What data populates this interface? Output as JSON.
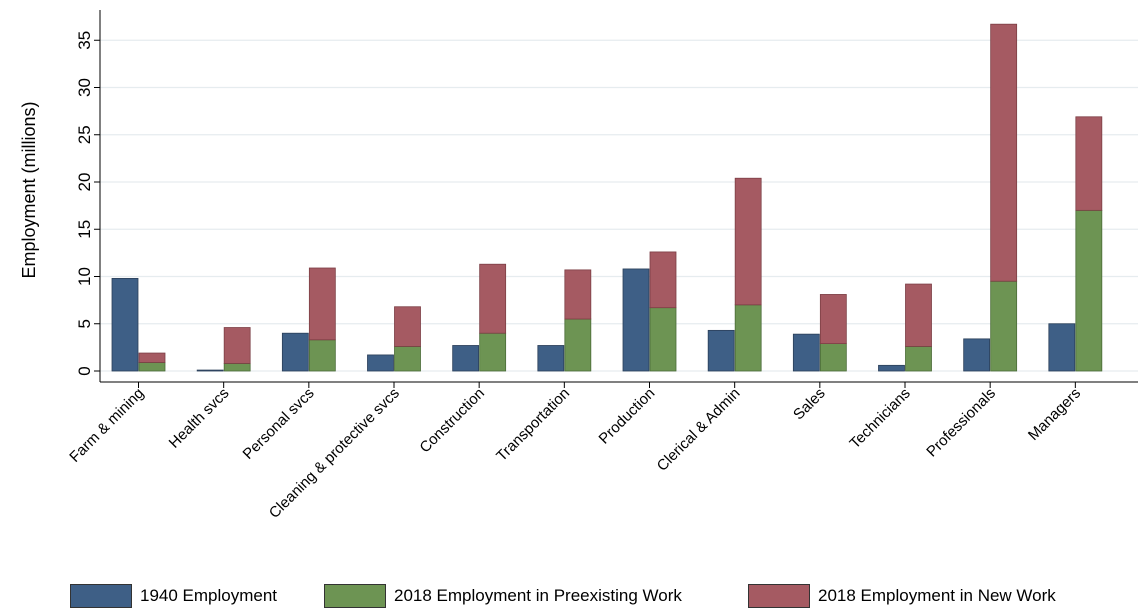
{
  "chart_data": {
    "type": "bar",
    "stacked_series_note": "",
    "ylabel": "Employment (millions)",
    "xlabel": "",
    "ylim": [
      0,
      36.7
    ],
    "yticks": [
      0,
      5,
      10,
      15,
      20,
      25,
      30,
      35
    ],
    "grid": "horizontal",
    "legend_position": "bottom",
    "categories": [
      "Farm & mining",
      "Health svcs",
      "Personal svcs",
      "Cleaning & protective svcs",
      "Construction",
      "Transportation",
      "Production",
      "Clerical & Admin",
      "Sales",
      "Technicians",
      "Professionals",
      "Managers"
    ],
    "series": [
      {
        "name": "1940 Employment",
        "color": "#3e5f86",
        "values": [
          9.8,
          0.1,
          4.0,
          1.7,
          2.7,
          2.7,
          10.8,
          4.3,
          3.9,
          0.6,
          3.4,
          5.0
        ]
      },
      {
        "name": "2018 Employment in Preexisting Work",
        "color": "#6d9453",
        "values": [
          0.9,
          0.8,
          3.3,
          2.6,
          4.0,
          5.5,
          6.7,
          7.0,
          2.9,
          2.6,
          9.5,
          17.0
        ]
      },
      {
        "name": "2018 Employment in New Work",
        "color": "#a55a62",
        "values": [
          1.0,
          3.8,
          7.6,
          4.2,
          7.3,
          5.2,
          5.9,
          13.4,
          5.2,
          6.6,
          27.2,
          9.9
        ]
      }
    ]
  }
}
